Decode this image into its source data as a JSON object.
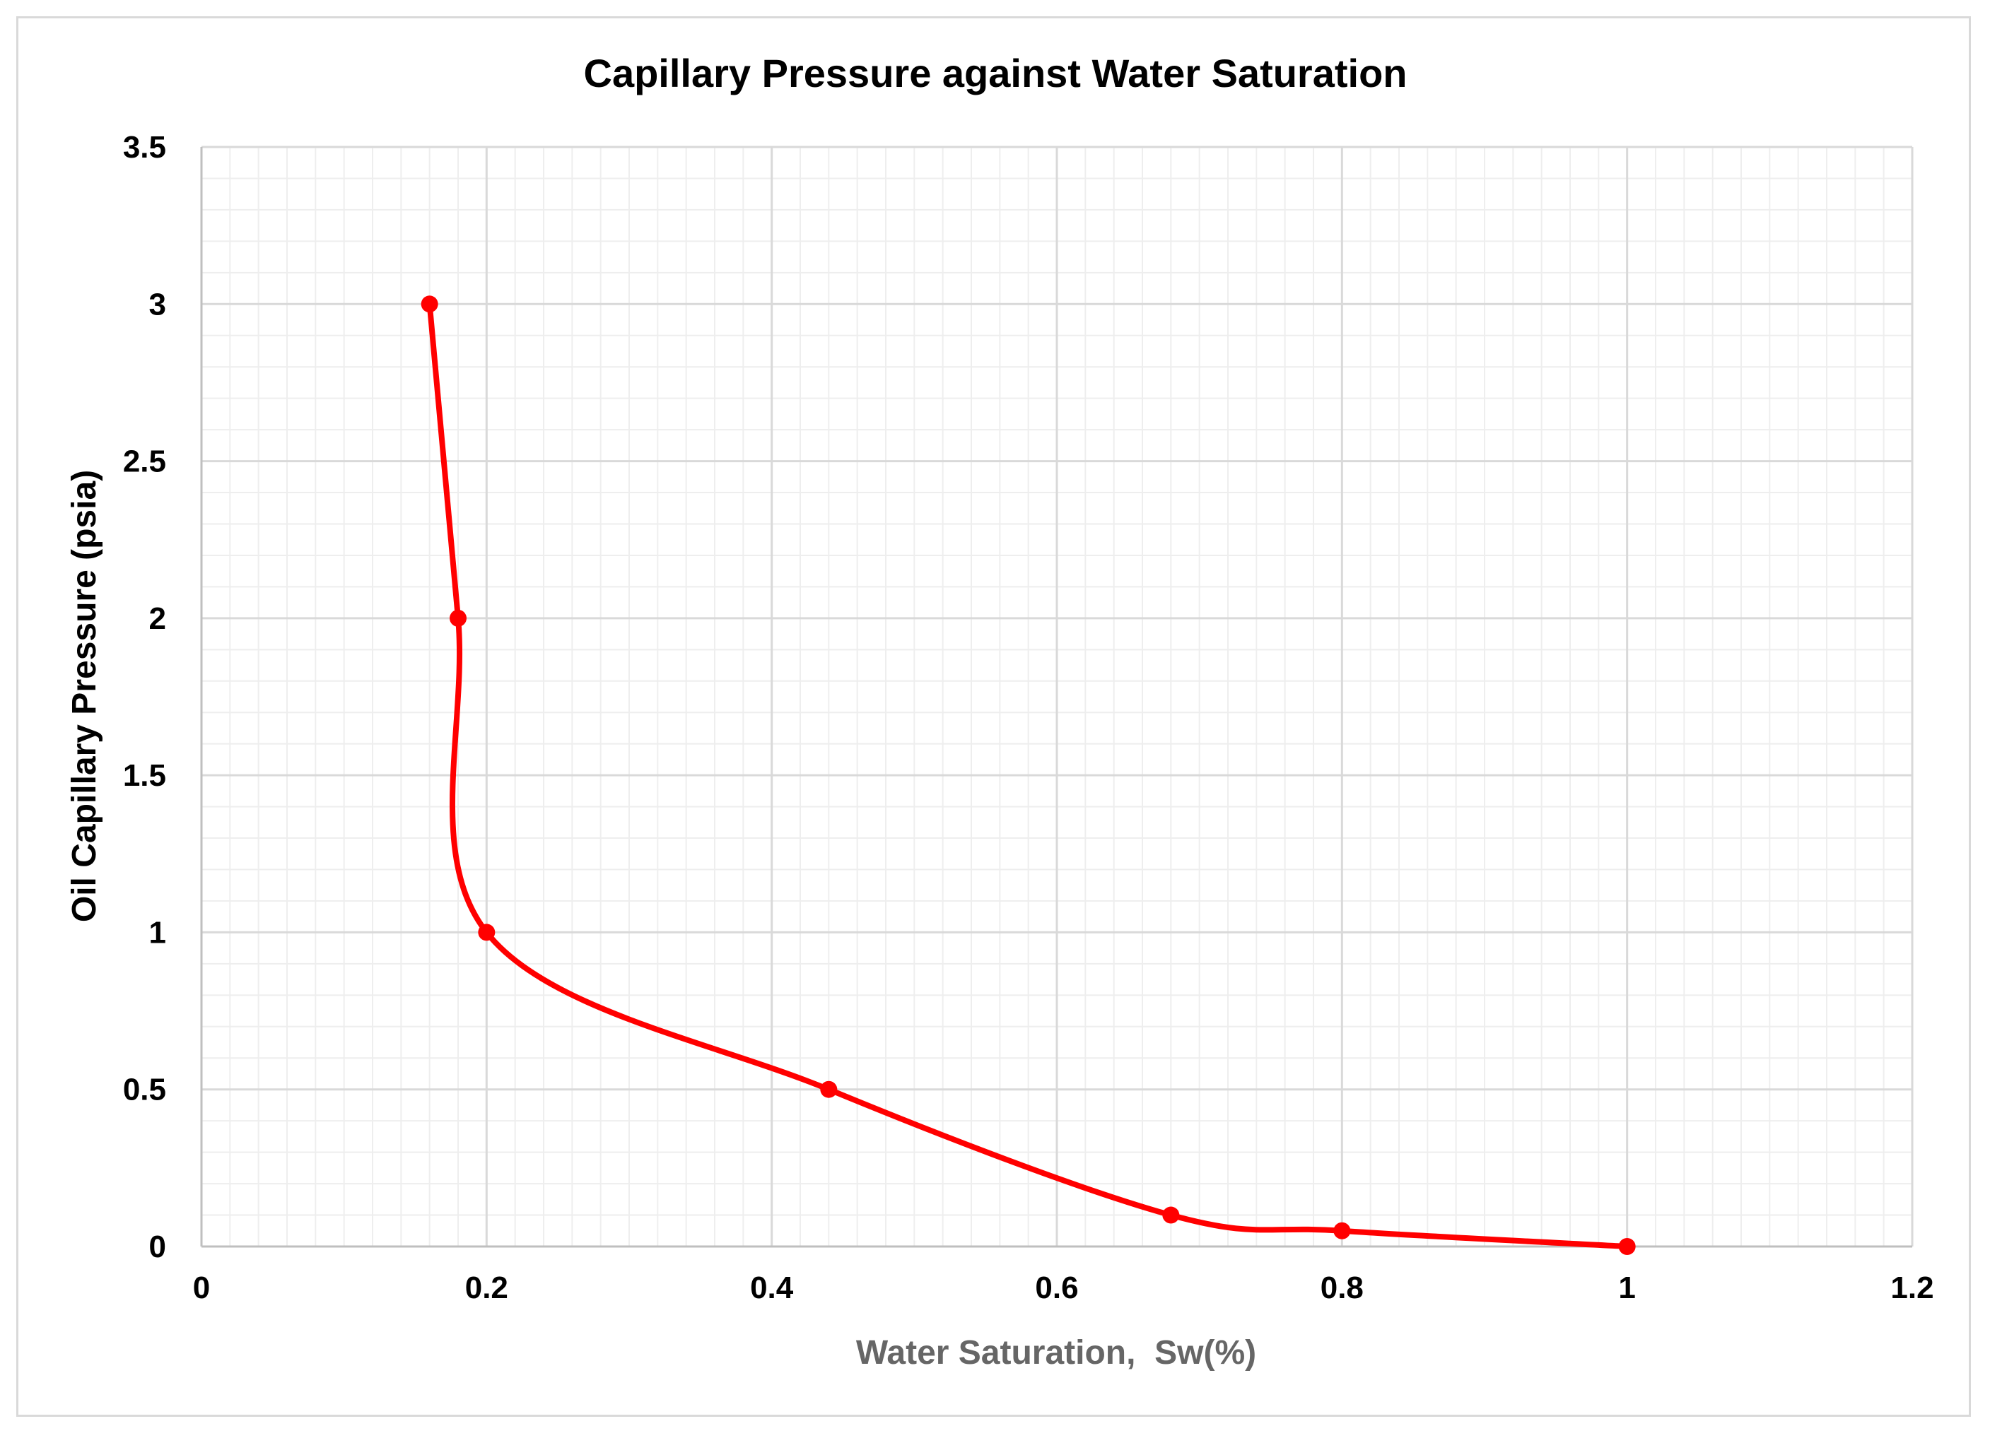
{
  "chart_data": {
    "type": "line",
    "title": "Capillary Pressure against Water Saturation",
    "xlabel": "Water Saturation,  Sw(%)",
    "ylabel": "Oil Capillary Pressure (psia)",
    "xlim": [
      0,
      1.2
    ],
    "ylim": [
      0,
      3.5
    ],
    "x_ticks": [
      0,
      0.2,
      0.4,
      0.6,
      0.8,
      1,
      1.2
    ],
    "y_ticks": [
      0,
      0.5,
      1,
      1.5,
      2,
      2.5,
      3,
      3.5
    ],
    "x_tick_labels": [
      "0",
      "0.2",
      "0.4",
      "0.6",
      "0.8",
      "1",
      "1.2"
    ],
    "y_tick_labels": [
      "0",
      "0.5",
      "1",
      "1.5",
      "2",
      "2.5",
      "3",
      "3.5"
    ],
    "grid": true,
    "minor_grid": true,
    "legend": false,
    "series": [
      {
        "name": "Oil Capillary Pressure",
        "smooth": true,
        "x": [
          0.16,
          0.18,
          0.2,
          0.44,
          0.68,
          0.8,
          1.0
        ],
        "y": [
          3.0,
          2.0,
          1.0,
          0.5,
          0.1,
          0.05,
          0.0
        ]
      }
    ],
    "colors": {
      "series": "#ff0000",
      "major_grid": "#d9d9d9",
      "minor_grid": "#eeeeee",
      "axis": "#bfbfbf",
      "frame": "#d9d9d9"
    }
  }
}
